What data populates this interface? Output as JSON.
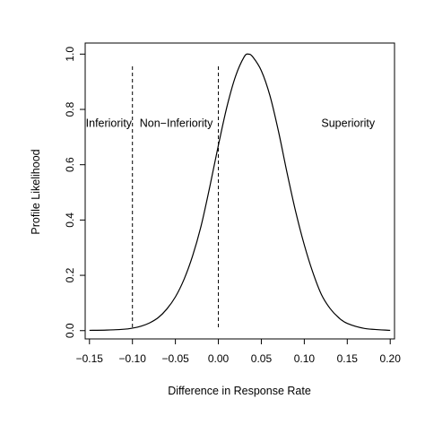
{
  "chart_data": {
    "type": "line",
    "title": "",
    "xlabel": "Difference in Response Rate",
    "ylabel": "Profile Likelihood",
    "xlim": [
      -0.155,
      0.205
    ],
    "ylim": [
      -0.03,
      1.04
    ],
    "x_ticks": [
      -0.15,
      -0.1,
      -0.05,
      0.0,
      0.05,
      0.1,
      0.15,
      0.2
    ],
    "x_tick_labels": [
      "−0.15",
      "−0.10",
      "−0.05",
      "0.00",
      "0.05",
      "0.10",
      "0.15",
      "0.20"
    ],
    "y_ticks": [
      0.0,
      0.2,
      0.4,
      0.6,
      0.8,
      1.0
    ],
    "y_tick_labels": [
      "0.0",
      "0.2",
      "0.4",
      "0.6",
      "0.8",
      "1.0"
    ],
    "grid": false,
    "series": [
      {
        "x": [
          -0.15,
          -0.13,
          -0.11,
          -0.1,
          -0.09,
          -0.08,
          -0.07,
          -0.06,
          -0.05,
          -0.04,
          -0.03,
          -0.02,
          -0.01,
          0.0,
          0.01,
          0.02,
          0.03,
          0.035,
          0.04,
          0.05,
          0.06,
          0.07,
          0.08,
          0.09,
          0.1,
          0.11,
          0.12,
          0.13,
          0.14,
          0.15,
          0.17,
          0.2
        ],
        "y": [
          0.001,
          0.002,
          0.005,
          0.009,
          0.016,
          0.028,
          0.047,
          0.078,
          0.122,
          0.185,
          0.27,
          0.38,
          0.52,
          0.67,
          0.81,
          0.92,
          0.99,
          1.0,
          0.99,
          0.94,
          0.85,
          0.72,
          0.57,
          0.43,
          0.31,
          0.21,
          0.13,
          0.08,
          0.047,
          0.026,
          0.008,
          0.001
        ],
        "stroke": "#000000"
      }
    ],
    "reference_lines": [
      {
        "x": -0.1,
        "style": "dashed"
      },
      {
        "x": 0.0,
        "style": "dashed"
      }
    ],
    "annotations": [
      {
        "text": "Inferiority",
        "x": -0.1275,
        "y": 0.75
      },
      {
        "text": "Non−Inferiority",
        "x": -0.049,
        "y": 0.75
      },
      {
        "text": "Superiority",
        "x": 0.151,
        "y": 0.75
      }
    ]
  }
}
